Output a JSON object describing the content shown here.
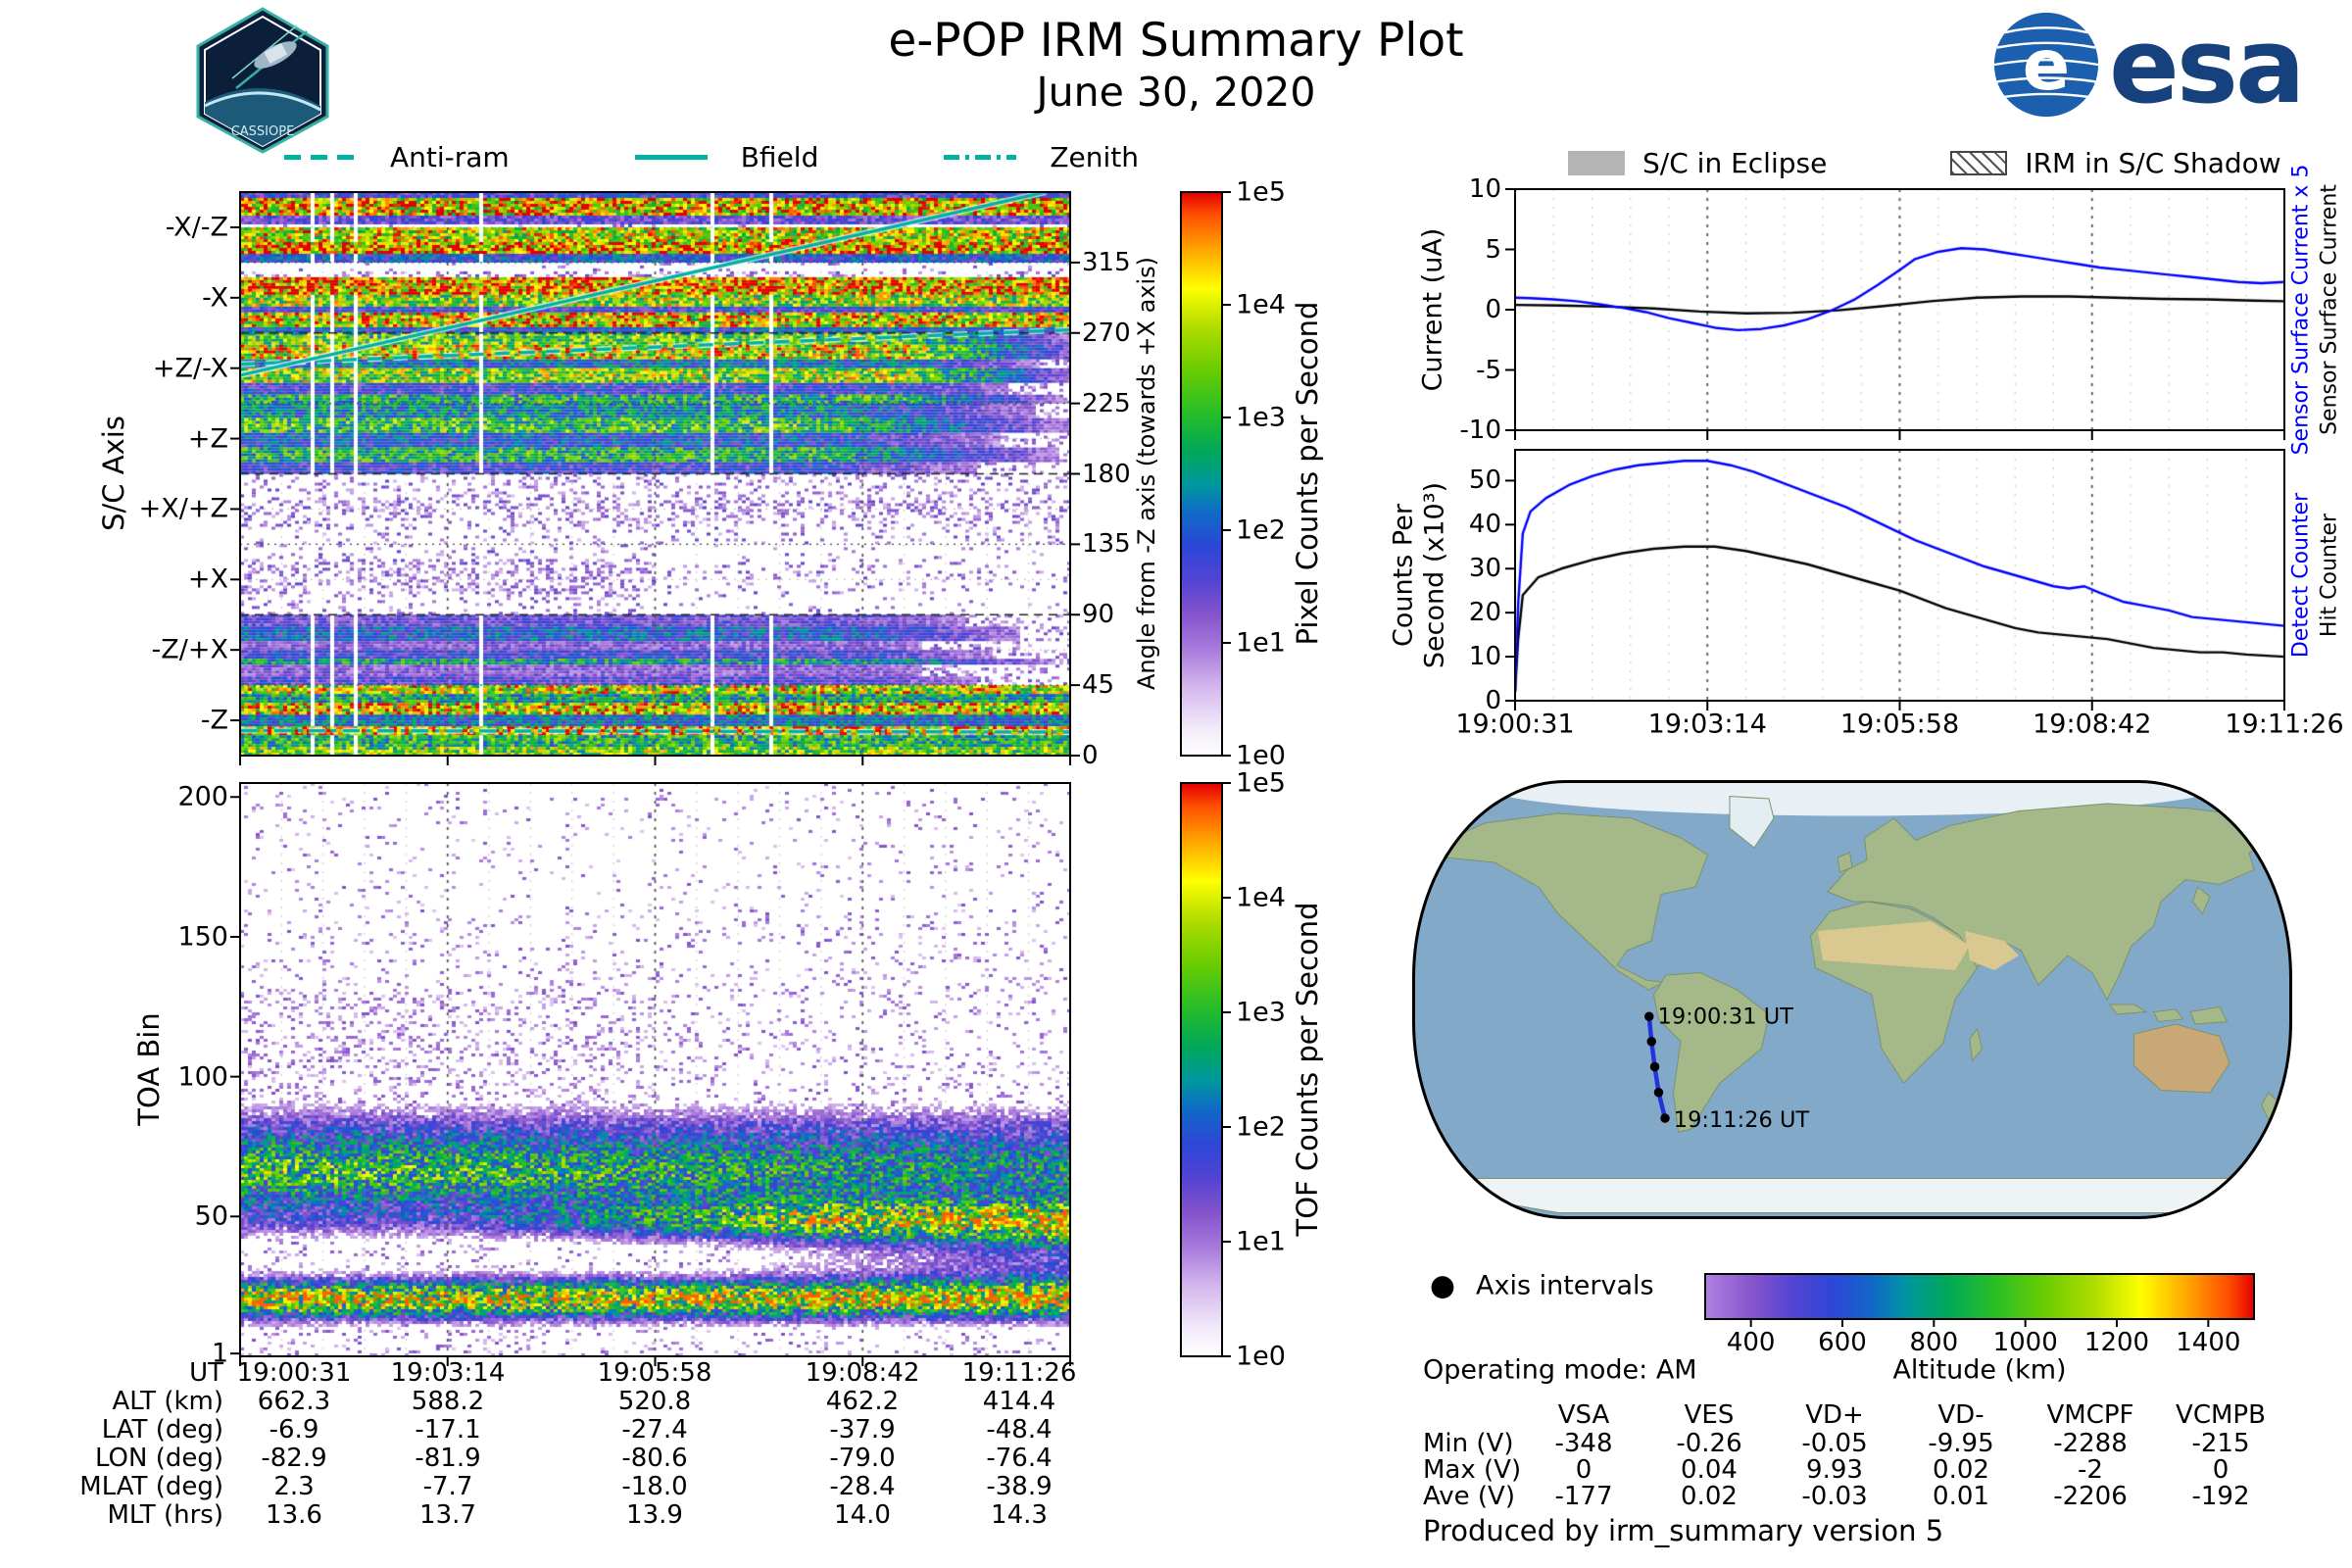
{
  "header": {
    "title": "e-POP IRM Summary Plot",
    "subtitle": "June 30, 2020",
    "cassiope_text": "CASSIOPE",
    "esa_text": "esa"
  },
  "direction_legend": {
    "color": "#00b2a2",
    "items": [
      {
        "label": "Anti-ram",
        "dash": "dashed"
      },
      {
        "label": "Bfield",
        "dash": "solid"
      },
      {
        "label": "Zenith",
        "dash": "dashdot"
      }
    ]
  },
  "status_legend": {
    "eclipse": "S/C in Eclipse",
    "shadow": "IRM in S/C Shadow"
  },
  "time_ticks": [
    "19:00:31",
    "19:03:14",
    "19:05:58",
    "19:08:42",
    "19:11:26"
  ],
  "chart_data": [
    {
      "id": "sc_axis_spectrogram",
      "type": "heatmap",
      "ylabel": "S/C Axis",
      "y_categories": [
        "-X/-Z",
        "-X",
        "+Z/-X",
        "+Z",
        "+X/+Z",
        "+X",
        "-Z/+X",
        "-Z"
      ],
      "right_axis": {
        "label": "Angle from -Z axis (towards +X axis)",
        "ticks": [
          315,
          270,
          225,
          180,
          135,
          90,
          45,
          0
        ],
        "range": [
          360,
          0
        ]
      },
      "x_ticks": [
        "19:00:31",
        "19:03:14",
        "19:05:58",
        "19:08:42",
        "19:11:26"
      ],
      "colorbar": {
        "label": "Pixel Counts per Second",
        "ticks": [
          "1e5",
          "1e4",
          "1e3",
          "1e2",
          "1e1",
          "1e0"
        ]
      },
      "overlays": [
        {
          "name": "Bfield",
          "style": "solid",
          "angle_start": 243,
          "angle_end": 360,
          "x_end": 0.97
        },
        {
          "name": "Anti-ram",
          "style": "dashed",
          "angle_start": 250,
          "angle_end": 272
        },
        {
          "name": "Zenith",
          "style": "dashdot",
          "angle_start": 16,
          "angle_end": 15
        }
      ],
      "bands": [
        {
          "name": "-X/-Z",
          "stripes": [
            [
              0,
              0.08,
              0.35
            ],
            [
              0.08,
              0.3,
              0.88
            ],
            [
              0.3,
              0.42,
              0.3
            ],
            [
              0.42,
              0.5,
              0.05
            ],
            [
              0.5,
              0.68,
              0.8
            ],
            [
              0.68,
              0.85,
              0.92
            ],
            [
              0.85,
              1,
              0.4
            ]
          ]
        },
        {
          "name": "-X",
          "stripes": [
            [
              0,
              0.1,
              0.03
            ],
            [
              0.1,
              0.2,
              0.15
            ],
            [
              0.2,
              0.45,
              0.95
            ],
            [
              0.45,
              0.6,
              0.75
            ],
            [
              0.6,
              0.7,
              0.35
            ],
            [
              0.7,
              0.9,
              0.85
            ],
            [
              0.9,
              1,
              0.4
            ]
          ]
        },
        {
          "name": "+Z/-X",
          "stripes": [
            [
              0,
              0.15,
              0.7
            ],
            [
              0.15,
              0.35,
              0.82
            ],
            [
              0.35,
              0.5,
              0.45
            ],
            [
              0.5,
              0.7,
              0.75
            ],
            [
              0.7,
              0.85,
              0.35
            ],
            [
              0.85,
              1,
              0.6
            ]
          ],
          "fade_right": 0.8
        },
        {
          "name": "+Z",
          "stripes": [
            [
              0,
              0.2,
              0.5
            ],
            [
              0.2,
              0.4,
              0.65
            ],
            [
              0.4,
              0.6,
              0.4
            ],
            [
              0.6,
              0.8,
              0.6
            ],
            [
              0.8,
              1,
              0.35
            ]
          ],
          "fade_right": 0.7
        },
        {
          "name": "+X/+Z",
          "stripes": [
            [
              0,
              0.3,
              0.12
            ],
            [
              0.3,
              0.55,
              0.18
            ],
            [
              0.55,
              0.75,
              0.12
            ],
            [
              0.75,
              1,
              0.07
            ]
          ]
        },
        {
          "name": "+X",
          "stripes": [
            [
              0,
              0.2,
              0.06
            ],
            [
              0.2,
              0.7,
              0.13
            ],
            [
              0.7,
              1,
              0.06
            ]
          ],
          "dense_left": true
        },
        {
          "name": "-Z/+X",
          "stripes": [
            [
              0,
              0.15,
              0.3
            ],
            [
              0.15,
              0.35,
              0.42
            ],
            [
              0.35,
              0.5,
              0.25
            ],
            [
              0.5,
              0.62,
              0.35
            ],
            [
              0.62,
              0.7,
              0.55
            ],
            [
              0.7,
              0.85,
              0.25
            ],
            [
              0.85,
              1,
              0.32
            ]
          ],
          "fade_right": 0.75
        },
        {
          "name": "-Z",
          "stripes": [
            [
              0,
              0.12,
              0.8
            ],
            [
              0.12,
              0.25,
              0.55
            ],
            [
              0.25,
              0.4,
              0.85
            ],
            [
              0.4,
              0.55,
              0.45
            ],
            [
              0.55,
              0.7,
              0.9
            ],
            [
              0.7,
              0.85,
              0.6
            ],
            [
              0.85,
              1,
              0.72
            ]
          ]
        }
      ]
    },
    {
      "id": "toa_spectrogram",
      "type": "heatmap",
      "ylabel": "TOA Bin",
      "y_ticks": [
        200,
        150,
        100,
        50,
        1
      ],
      "y_range": [
        1,
        205
      ],
      "x_ticks": [
        "19:00:31",
        "19:03:14",
        "19:05:58",
        "19:08:42",
        "19:11:26"
      ],
      "colorbar": {
        "label": "TOF Counts per Second",
        "ticks": [
          "1e5",
          "1e4",
          "1e3",
          "1e2",
          "1e1",
          "1e0"
        ]
      },
      "features": {
        "bands": [
          {
            "center": 21,
            "sigma": 5,
            "amp": 0.8
          },
          {
            "center": 66,
            "sigma": 9,
            "amp": 0.62
          },
          {
            "center": 49,
            "sigma": 5,
            "amp": 0.5,
            "ramp_right": true
          },
          {
            "center": 82,
            "sigma": 7,
            "amp": 0.2
          }
        ],
        "noise_density_low": 0.15,
        "noise_density_high": 0.06
      }
    },
    {
      "id": "sensor_current",
      "type": "line",
      "ylabel": "Current (uA)",
      "ylim": [
        -10,
        10
      ],
      "y_ticks": [
        10,
        5,
        0,
        -5,
        -10
      ],
      "x_ticks": [
        "19:00:31",
        "19:03:14",
        "19:05:58",
        "19:08:42",
        "19:11:26"
      ],
      "right_labels": [
        {
          "text": "Sensor Surface Current x 5",
          "color": "#0000ff"
        },
        {
          "text": "Sensor Surface Current",
          "color": "#000000"
        }
      ],
      "series": [
        {
          "name": "Sensor Surface Current x 5",
          "color": "#0000ff",
          "x": [
            0,
            0.02,
            0.05,
            0.08,
            0.11,
            0.14,
            0.17,
            0.2,
            0.23,
            0.26,
            0.29,
            0.32,
            0.35,
            0.38,
            0.41,
            0.44,
            0.47,
            0.5,
            0.52,
            0.55,
            0.58,
            0.61,
            0.64,
            0.67,
            0.7,
            0.73,
            0.76,
            0.79,
            0.82,
            0.85,
            0.88,
            0.91,
            0.94,
            0.97,
            1
          ],
          "y": [
            1.0,
            0.95,
            0.85,
            0.7,
            0.45,
            0.15,
            -0.2,
            -0.7,
            -1.1,
            -1.5,
            -1.7,
            -1.6,
            -1.3,
            -0.8,
            -0.1,
            0.8,
            2.0,
            3.3,
            4.2,
            4.8,
            5.1,
            5.0,
            4.7,
            4.4,
            4.1,
            3.8,
            3.5,
            3.3,
            3.1,
            2.9,
            2.7,
            2.5,
            2.3,
            2.2,
            2.3
          ]
        },
        {
          "name": "Sensor Surface Current",
          "color": "#000000",
          "x": [
            0,
            0.06,
            0.12,
            0.18,
            0.24,
            0.3,
            0.36,
            0.42,
            0.48,
            0.54,
            0.6,
            0.66,
            0.72,
            0.78,
            0.84,
            0.9,
            0.96,
            1
          ],
          "y": [
            0.4,
            0.35,
            0.25,
            0.1,
            -0.15,
            -0.3,
            -0.25,
            -0.05,
            0.3,
            0.7,
            1.0,
            1.1,
            1.1,
            1.0,
            0.9,
            0.85,
            0.75,
            0.7
          ]
        }
      ]
    },
    {
      "id": "counters",
      "type": "line",
      "ylabel_lines": [
        "Counts Per",
        "Second (x10³)"
      ],
      "ylim": [
        0,
        57
      ],
      "y_ticks": [
        50,
        40,
        30,
        20,
        10,
        0
      ],
      "x_ticks": [
        "19:00:31",
        "19:03:14",
        "19:05:58",
        "19:08:42",
        "19:11:26"
      ],
      "right_labels": [
        {
          "text": "Detect Counter",
          "color": "#0000ff"
        },
        {
          "text": "Hit Counter",
          "color": "#000000"
        }
      ],
      "series": [
        {
          "name": "Detect Counter",
          "color": "#0000ff",
          "x": [
            0,
            0.004,
            0.01,
            0.02,
            0.04,
            0.07,
            0.1,
            0.13,
            0.16,
            0.19,
            0.22,
            0.25,
            0.28,
            0.31,
            0.34,
            0.37,
            0.4,
            0.43,
            0.46,
            0.49,
            0.52,
            0.55,
            0.58,
            0.61,
            0.64,
            0.67,
            0.7,
            0.72,
            0.74,
            0.76,
            0.79,
            0.82,
            0.85,
            0.88,
            0.91,
            0.94,
            0.97,
            1
          ],
          "y": [
            2,
            22,
            38,
            43,
            46,
            49,
            51,
            52.5,
            53.5,
            54,
            54.5,
            54.5,
            53.5,
            52,
            50,
            48,
            46,
            44,
            41.5,
            39,
            36.5,
            34.5,
            32.5,
            30.5,
            29,
            27.5,
            26,
            25.5,
            26,
            24.5,
            22.5,
            21.5,
            20.5,
            19,
            18.5,
            18,
            17.5,
            17
          ]
        },
        {
          "name": "Hit Counter",
          "color": "#000000",
          "x": [
            0,
            0.004,
            0.01,
            0.03,
            0.06,
            0.1,
            0.14,
            0.18,
            0.22,
            0.26,
            0.3,
            0.34,
            0.38,
            0.42,
            0.46,
            0.5,
            0.53,
            0.56,
            0.59,
            0.62,
            0.65,
            0.68,
            0.71,
            0.74,
            0.77,
            0.8,
            0.83,
            0.86,
            0.89,
            0.92,
            0.95,
            1
          ],
          "y": [
            2,
            14,
            24,
            28,
            30,
            32,
            33.5,
            34.5,
            35,
            35,
            34,
            32.5,
            31,
            29,
            27,
            25,
            23,
            21,
            19.5,
            18,
            16.5,
            15.5,
            15,
            14.5,
            14,
            13,
            12,
            11.5,
            11,
            11,
            10.5,
            10
          ]
        }
      ]
    },
    {
      "id": "ground_track_map",
      "type": "scatter",
      "projection": "robinson-like",
      "track_lon": [
        -82.9,
        -81.9,
        -80.6,
        -79.0,
        -76.4
      ],
      "track_lat": [
        -6.9,
        -17.1,
        -27.4,
        -37.9,
        -48.4
      ],
      "point_labels": [
        "19:00:31 UT",
        "",
        "",
        "",
        "19:11:26 UT"
      ],
      "legend": "Axis intervals",
      "track_color": "#2233dd",
      "colorbar": {
        "label": "Altitude (km)",
        "ticks": [
          400,
          600,
          800,
          1000,
          1200,
          1400
        ],
        "range": [
          300,
          1500
        ],
        "orientation": "horizontal"
      }
    }
  ],
  "ephemeris": {
    "rows": [
      {
        "label": "UT",
        "values": [
          "19:00:31",
          "19:03:14",
          "19:05:58",
          "19:08:42",
          "19:11:26"
        ]
      },
      {
        "label": "ALT (km)",
        "values": [
          "662.3",
          "588.2",
          "520.8",
          "462.2",
          "414.4"
        ]
      },
      {
        "label": "LAT (deg)",
        "values": [
          "-6.9",
          "-17.1",
          "-27.4",
          "-37.9",
          "-48.4"
        ]
      },
      {
        "label": "LON (deg)",
        "values": [
          "-82.9",
          "-81.9",
          "-80.6",
          "-79.0",
          "-76.4"
        ]
      },
      {
        "label": "MLAT (deg)",
        "values": [
          "2.3",
          "-7.7",
          "-18.0",
          "-28.4",
          "-38.9"
        ]
      },
      {
        "label": "MLT (hrs)",
        "values": [
          "13.6",
          "13.7",
          "13.9",
          "14.0",
          "14.3"
        ]
      }
    ]
  },
  "operating_mode_label": "Operating mode: AM",
  "voltage_table": {
    "columns": [
      "VSA",
      "VES",
      "VD+",
      "VD-",
      "VMCPF",
      "VCMPB"
    ],
    "rows": [
      {
        "label": "Min (V)",
        "values": [
          "-348",
          "-0.26",
          "-0.05",
          "-9.95",
          "-2288",
          "-215"
        ]
      },
      {
        "label": "Max (V)",
        "values": [
          "0",
          "0.04",
          "9.93",
          "0.02",
          "-2",
          "0"
        ]
      },
      {
        "label": "Ave (V)",
        "values": [
          "-177",
          "0.02",
          "-0.03",
          "0.01",
          "-2206",
          "-192"
        ]
      }
    ]
  },
  "footer_text": "Produced by irm_summary version 5"
}
